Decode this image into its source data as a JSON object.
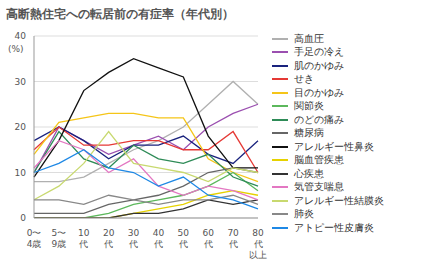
{
  "chart_data": {
    "type": "line",
    "title": "高断熱住宅への転居前の有症率（年代別）",
    "y_label": "(%)",
    "categories": [
      "0〜4歳",
      "5〜9歳",
      "10代",
      "20代",
      "30代",
      "40代",
      "50代",
      "60代",
      "70代",
      "80代以上"
    ],
    "ylim": [
      0,
      40
    ],
    "yticks": [
      0,
      10,
      20,
      30,
      40
    ],
    "grid": true,
    "series": [
      {
        "name": "高血圧",
        "color": "#b0b0b0",
        "values": [
          8,
          8,
          9,
          12,
          15,
          17,
          20,
          25,
          30,
          25
        ]
      },
      {
        "name": "手足の冷え",
        "color": "#9b4fb0",
        "values": [
          10,
          20,
          17,
          14,
          16,
          18,
          15,
          20,
          23,
          25
        ]
      },
      {
        "name": "肌のかゆみ",
        "color": "#1a237e",
        "values": [
          17,
          20,
          17,
          13,
          16,
          16,
          18,
          14,
          12,
          17
        ]
      },
      {
        "name": "せき",
        "color": "#e53935",
        "values": [
          15,
          20,
          16,
          16,
          17,
          17,
          15,
          15,
          19,
          10
        ]
      },
      {
        "name": "目のかゆみ",
        "color": "#f5c518",
        "values": [
          14,
          21,
          22,
          23,
          23,
          22,
          22,
          13,
          10,
          8
        ]
      },
      {
        "name": "関節炎",
        "color": "#5cb85c",
        "values": [
          0,
          0,
          0,
          1,
          3,
          4,
          5,
          7,
          10,
          6
        ]
      },
      {
        "name": "のどの痛み",
        "color": "#2e8b57",
        "values": [
          10,
          19,
          13,
          11,
          16,
          13,
          12,
          14,
          9,
          7
        ]
      },
      {
        "name": "糖尿病",
        "color": "#666666",
        "values": [
          1,
          1,
          1,
          3,
          4,
          5,
          7,
          10,
          11,
          10
        ]
      },
      {
        "name": "アレルギー性鼻炎",
        "color": "#111111",
        "values": [
          9,
          17,
          28,
          32,
          35,
          33,
          31,
          18,
          11,
          11
        ]
      },
      {
        "name": "脳血管疾患",
        "color": "#e6d200",
        "values": [
          0,
          0,
          0,
          0,
          1,
          2,
          3,
          5,
          6,
          5
        ]
      },
      {
        "name": "心疾患",
        "color": "#333333",
        "values": [
          0,
          0,
          0,
          0,
          1,
          1,
          2,
          4,
          3,
          4
        ]
      },
      {
        "name": "気管支喘息",
        "color": "#e377c2",
        "values": [
          11,
          17,
          15,
          10,
          13,
          7,
          5,
          7,
          6,
          4
        ]
      },
      {
        "name": "アレルギー性結膜炎",
        "color": "#c8d96f",
        "values": [
          4,
          7,
          12,
          19,
          12,
          11,
          10,
          8,
          11,
          10
        ]
      },
      {
        "name": "肺炎",
        "color": "#888888",
        "values": [
          4,
          4,
          3,
          5,
          4,
          3,
          4,
          4,
          5,
          3
        ]
      },
      {
        "name": "アトピー性皮膚炎",
        "color": "#1e88e5",
        "values": [
          10,
          12,
          15,
          11,
          10,
          7,
          9,
          5,
          4,
          2
        ]
      }
    ]
  }
}
